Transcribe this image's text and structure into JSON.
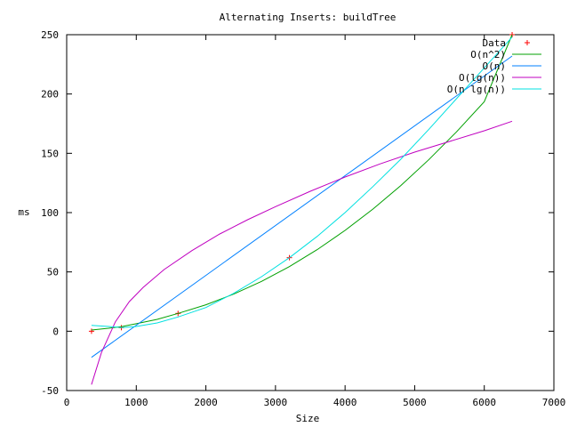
{
  "chart_data": {
    "type": "line",
    "title": "Alternating Inserts: buildTree",
    "xlabel": "Size",
    "ylabel": "ms",
    "xlim": [
      0,
      7000
    ],
    "ylim": [
      -50,
      250
    ],
    "xticks": [
      0,
      1000,
      2000,
      3000,
      4000,
      5000,
      6000,
      7000
    ],
    "yticks": [
      -50,
      0,
      50,
      100,
      150,
      200,
      250
    ],
    "legend_position": "top-right",
    "grid": false,
    "series": [
      {
        "name": "Data",
        "style": "points",
        "marker": "+",
        "color": "#ff0000",
        "x": [
          357,
          786,
          1600,
          3200,
          6400
        ],
        "y": [
          0,
          3,
          15,
          62,
          250
        ]
      },
      {
        "name": "O(n^2)",
        "style": "line",
        "color": "#00a000",
        "x": [
          357,
          600,
          800,
          1000,
          1300,
          1600,
          2000,
          2400,
          2800,
          3200,
          3600,
          4000,
          4400,
          4800,
          5200,
          5600,
          6000,
          6400
        ],
        "y": [
          1.0,
          2.5,
          4.0,
          6.3,
          10.0,
          15.0,
          22.3,
          31.3,
          42.0,
          54.5,
          68.8,
          85.0,
          103.0,
          122.8,
          144.5,
          168.0,
          193.5,
          250
        ]
      },
      {
        "name": "O(n)",
        "style": "line",
        "color": "#0080ff",
        "x": [
          357,
          6400
        ],
        "y": [
          -22,
          232
        ]
      },
      {
        "name": "O(lg(n))",
        "style": "line",
        "color": "#c000c0",
        "x": [
          357,
          500,
          700,
          900,
          1100,
          1400,
          1800,
          2200,
          2600,
          3000,
          3500,
          4000,
          4500,
          5000,
          5500,
          6000,
          6400
        ],
        "y": [
          -45,
          -18,
          8,
          25,
          37,
          52,
          68,
          82,
          94,
          105,
          118,
          130,
          141,
          151,
          160,
          169,
          177
        ]
      },
      {
        "name": "O(n lg(n))",
        "style": "line",
        "color": "#00e0e0",
        "x": [
          357,
          600,
          800,
          1000,
          1300,
          1600,
          2000,
          2400,
          2800,
          3200,
          3600,
          4000,
          4400,
          4800,
          5200,
          5600,
          6000,
          6400
        ],
        "y": [
          5,
          4,
          3,
          4,
          7,
          12,
          20,
          32,
          46,
          62,
          80,
          100,
          122,
          145,
          170,
          196,
          222,
          248
        ]
      }
    ]
  }
}
